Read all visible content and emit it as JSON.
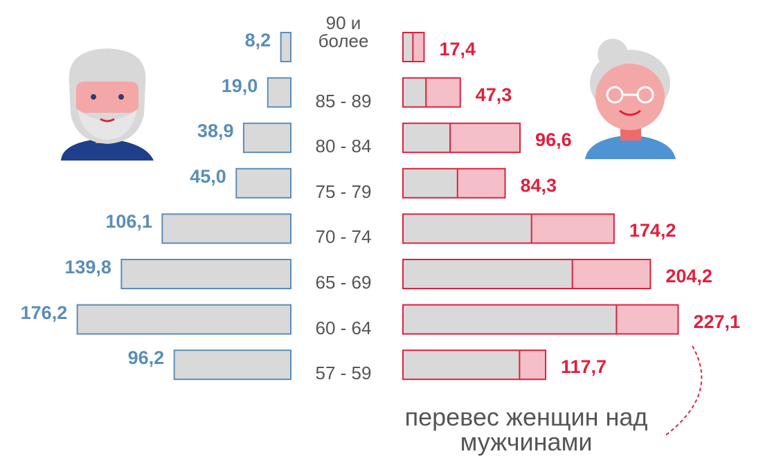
{
  "chart_data": {
    "type": "pyramid",
    "categories": [
      "90 и более",
      "85 - 89",
      "80 - 84",
      "75 - 79",
      "70 - 74",
      "65 - 69",
      "60 - 64",
      "57 - 59"
    ],
    "series": [
      {
        "color": "#5b8db8",
        "values": [
          8.2,
          19.0,
          38.9,
          45.0,
          106.1,
          139.8,
          176.2,
          96.2
        ],
        "value_labels": [
          "8,2",
          "19,0",
          "38,9",
          "45,0",
          "106,1",
          "139,8",
          "176,2",
          "96,2"
        ]
      },
      {
        "color": "#e0203c",
        "values": [
          17.4,
          47.3,
          96.6,
          84.3,
          174.2,
          204.2,
          227.1,
          117.7
        ],
        "value_labels": [
          "17,4",
          "47,3",
          "96,6",
          "84,3",
          "174,2",
          "204,2",
          "227,1",
          "117,7"
        ]
      }
    ],
    "annotation": "перевес женщин над мужчинами"
  }
}
